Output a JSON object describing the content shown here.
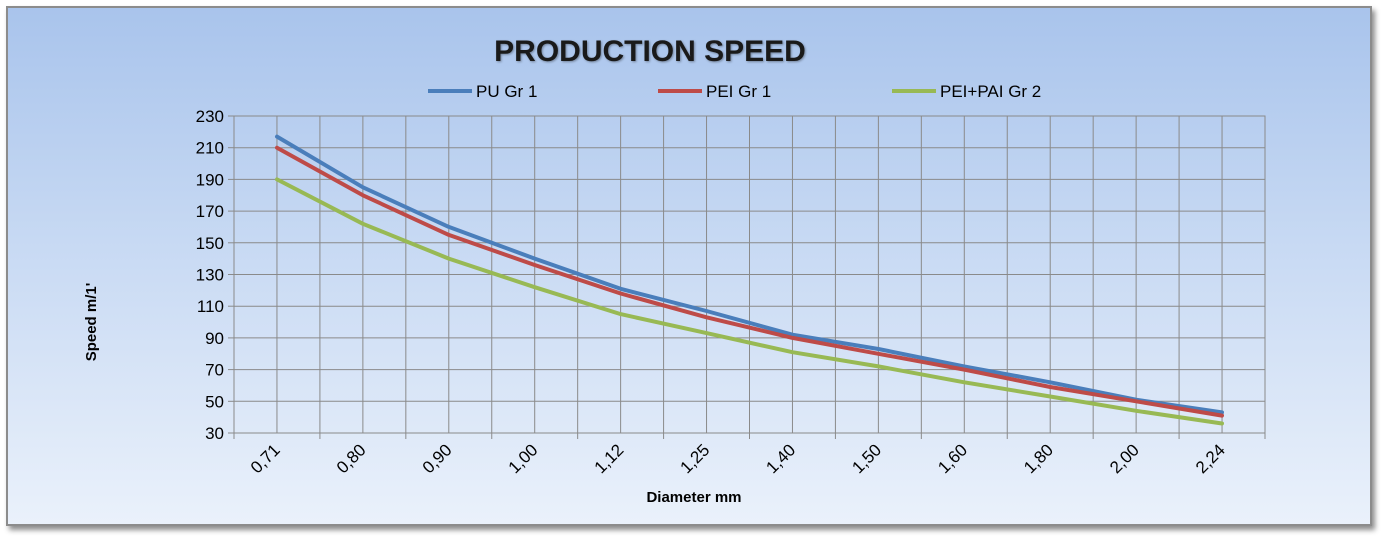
{
  "chart_data": {
    "type": "line",
    "title": "PRODUCTION SPEED",
    "xlabel": "Diameter mm",
    "ylabel": "Speed m/1'",
    "categories": [
      "0,71",
      "0,80",
      "0,90",
      "1,00",
      "1,12",
      "1,25",
      "1,40",
      "1,50",
      "1,60",
      "1,80",
      "2,00",
      "2,24"
    ],
    "ylim": [
      30,
      230
    ],
    "yticks": [
      30,
      50,
      70,
      90,
      110,
      130,
      150,
      170,
      190,
      210,
      230
    ],
    "grid": true,
    "legend_position": "top",
    "series": [
      {
        "name": "PU Gr 1",
        "color": "#4a7ebb",
        "values": [
          217,
          185,
          160,
          140,
          121,
          107,
          92,
          83,
          72,
          62,
          51,
          43
        ]
      },
      {
        "name": "PEI Gr 1",
        "color": "#be4b48",
        "values": [
          210,
          180,
          155,
          136,
          118,
          103,
          90,
          80,
          70,
          59,
          50,
          41
        ]
      },
      {
        "name": "PEI+PAI Gr 2",
        "color": "#98b954",
        "values": [
          190,
          162,
          140,
          122,
          105,
          93,
          81,
          72,
          62,
          53,
          44,
          36
        ]
      }
    ]
  }
}
